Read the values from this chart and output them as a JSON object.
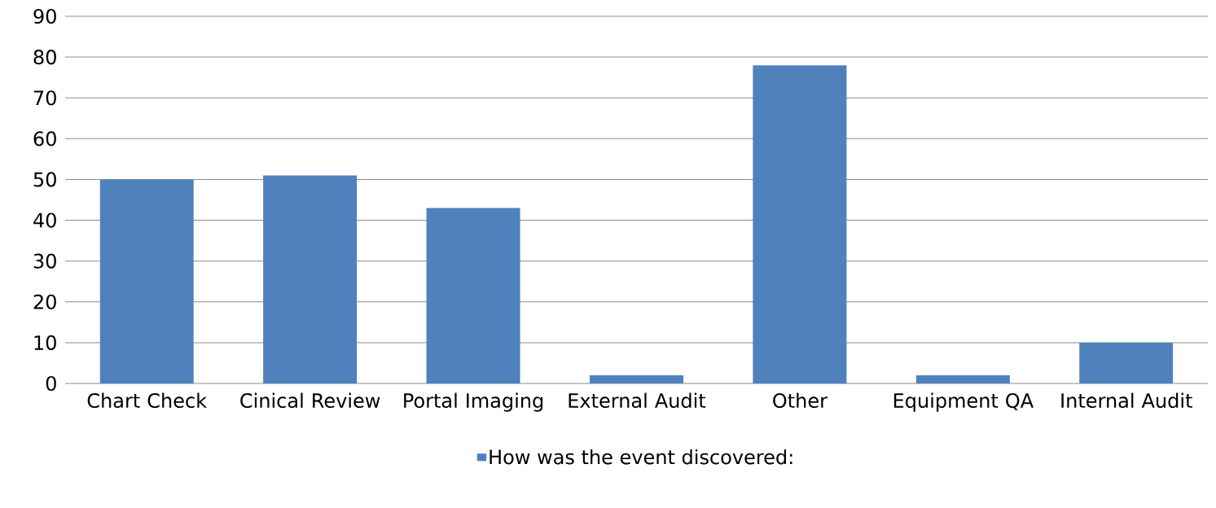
{
  "chart_data": {
    "type": "bar",
    "categories": [
      "Chart Check",
      "Cinical Review",
      "Portal Imaging",
      "External Audit",
      "Other",
      "Equipment QA",
      "Internal Audit"
    ],
    "series": [
      {
        "name": "How was the event discovered:",
        "color": "#4f81bd",
        "values": [
          50,
          51,
          43,
          2,
          78,
          2,
          10
        ]
      }
    ],
    "ylim": [
      0,
      90
    ],
    "yticks": [
      0,
      10,
      20,
      30,
      40,
      50,
      60,
      70,
      80,
      90
    ],
    "grid": "y",
    "legend": "bottom"
  }
}
